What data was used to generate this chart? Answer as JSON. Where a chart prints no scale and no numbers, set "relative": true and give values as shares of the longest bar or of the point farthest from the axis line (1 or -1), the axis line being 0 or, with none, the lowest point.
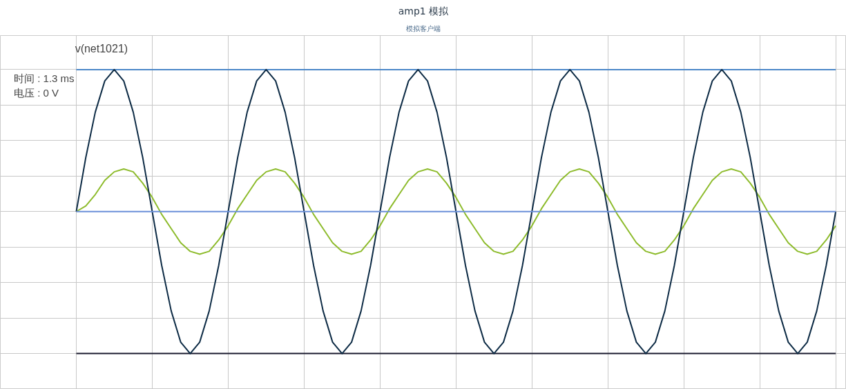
{
  "chart_data": {
    "type": "line",
    "title": "amp1 模拟",
    "subtitle": "模拟客户端",
    "relative": true,
    "grid": true,
    "annotations": [
      "v(net1021)",
      "时间 : 1.3 ms",
      "电压 : 0 V"
    ],
    "categories": [
      null,
      null,
      null,
      null,
      null,
      null,
      null,
      null,
      null,
      null,
      null,
      null,
      null,
      null,
      null,
      null,
      null,
      null,
      null,
      null,
      null,
      null,
      null,
      null,
      null,
      null,
      null,
      null,
      null,
      null,
      null,
      null,
      null,
      null,
      null,
      null,
      null,
      null,
      null,
      null,
      null,
      null,
      null,
      null,
      null,
      null,
      null,
      null,
      null,
      null,
      null,
      null,
      null,
      null,
      null,
      null,
      null,
      null,
      null,
      null,
      null,
      null,
      null,
      null,
      null,
      null,
      null,
      null,
      null,
      null,
      null,
      null,
      null,
      null,
      null,
      null,
      null,
      null,
      null,
      null,
      null
    ],
    "series": [
      {
        "color": "#4a86c8",
        "values": [
          1,
          1,
          1,
          1,
          1,
          1,
          1,
          1,
          1,
          1,
          1,
          1,
          1,
          1,
          1,
          1,
          1,
          1,
          1,
          1,
          1,
          1,
          1,
          1,
          1,
          1,
          1,
          1,
          1,
          1,
          1,
          1,
          1,
          1,
          1,
          1,
          1,
          1,
          1,
          1,
          1,
          1,
          1,
          1,
          1,
          1,
          1,
          1,
          1,
          1,
          1,
          1,
          1,
          1,
          1,
          1,
          1,
          1,
          1,
          1,
          1,
          1,
          1,
          1,
          1,
          1,
          1,
          1,
          1,
          1,
          1,
          1,
          1,
          1,
          1,
          1,
          1,
          1,
          1,
          1,
          1
        ]
      },
      {
        "color": "#1a1a2e",
        "values": [
          0,
          0,
          0,
          0,
          0,
          0,
          0,
          0,
          0,
          0,
          0,
          0,
          0,
          0,
          0,
          0,
          0,
          0,
          0,
          0,
          0,
          0,
          0,
          0,
          0,
          0,
          0,
          0,
          0,
          0,
          0,
          0,
          0,
          0,
          0,
          0,
          0,
          0,
          0,
          0,
          0,
          0,
          0,
          0,
          0,
          0,
          0,
          0,
          0,
          0,
          0,
          0,
          0,
          0,
          0,
          0,
          0,
          0,
          0,
          0,
          0,
          0,
          0,
          0,
          0,
          0,
          0,
          0,
          0,
          0,
          0,
          0,
          0,
          0,
          0,
          0,
          0,
          0,
          0,
          0,
          0
        ]
      },
      {
        "color": "#8dbb2b",
        "values": [
          0.5,
          0.52,
          0.56,
          0.61,
          0.64,
          0.65,
          0.64,
          0.6,
          0.55,
          0.49,
          0.44,
          0.39,
          0.36,
          0.35,
          0.36,
          0.4,
          0.45,
          0.51,
          0.56,
          0.61,
          0.64,
          0.65,
          0.64,
          0.6,
          0.55,
          0.49,
          0.44,
          0.39,
          0.36,
          0.35,
          0.36,
          0.4,
          0.45,
          0.51,
          0.56,
          0.61,
          0.64,
          0.65,
          0.64,
          0.6,
          0.55,
          0.49,
          0.44,
          0.39,
          0.36,
          0.35,
          0.36,
          0.4,
          0.45,
          0.51,
          0.56,
          0.61,
          0.64,
          0.65,
          0.64,
          0.6,
          0.55,
          0.49,
          0.44,
          0.39,
          0.36,
          0.35,
          0.36,
          0.4,
          0.45,
          0.51,
          0.56,
          0.61,
          0.64,
          0.65,
          0.64,
          0.6,
          0.55,
          0.49,
          0.44,
          0.39,
          0.36,
          0.35,
          0.36,
          0.4,
          0.45
        ]
      },
      {
        "color": "#0d2b45",
        "values": [
          0.5,
          0.69,
          0.85,
          0.96,
          1,
          0.96,
          0.85,
          0.69,
          0.5,
          0.31,
          0.15,
          0.04,
          0,
          0.04,
          0.15,
          0.31,
          0.5,
          0.69,
          0.85,
          0.96,
          1,
          0.96,
          0.85,
          0.69,
          0.5,
          0.31,
          0.15,
          0.04,
          0,
          0.04,
          0.15,
          0.31,
          0.5,
          0.69,
          0.85,
          0.96,
          1,
          0.96,
          0.85,
          0.69,
          0.5,
          0.31,
          0.15,
          0.04,
          0,
          0.04,
          0.15,
          0.31,
          0.5,
          0.69,
          0.85,
          0.96,
          1,
          0.96,
          0.85,
          0.69,
          0.5,
          0.31,
          0.15,
          0.04,
          0,
          0.04,
          0.15,
          0.31,
          0.5,
          0.69,
          0.85,
          0.96,
          1,
          0.96,
          0.85,
          0.69,
          0.5,
          0.31,
          0.15,
          0.04,
          0,
          0.04,
          0.15,
          0.31,
          0.5
        ]
      },
      {
        "color": "#6a8fd8",
        "values": [
          0.5,
          0.5,
          0.5,
          0.5,
          0.5,
          0.5,
          0.5,
          0.5,
          0.5,
          0.5,
          0.5,
          0.5,
          0.5,
          0.5,
          0.5,
          0.5,
          0.5,
          0.5,
          0.5,
          0.5,
          0.5,
          0.5,
          0.5,
          0.5,
          0.5,
          0.5,
          0.5,
          0.5,
          0.5,
          0.5,
          0.5,
          0.5,
          0.5,
          0.5,
          0.5,
          0.5,
          0.5,
          0.5,
          0.5,
          0.5,
          0.5,
          0.5,
          0.5,
          0.5,
          0.5,
          0.5,
          0.5,
          0.5,
          0.5,
          0.5,
          0.5,
          0.5,
          0.5,
          0.5,
          0.5,
          0.5,
          0.5,
          0.5,
          0.5,
          0.5,
          0.5,
          0.5,
          0.5,
          0.5,
          0.5,
          0.5,
          0.5,
          0.5,
          0.5,
          0.5,
          0.5,
          0.5,
          0.5,
          0.5,
          0.5,
          0.5,
          0.5,
          0.5,
          0.5,
          0.5,
          0.5
        ]
      }
    ]
  }
}
